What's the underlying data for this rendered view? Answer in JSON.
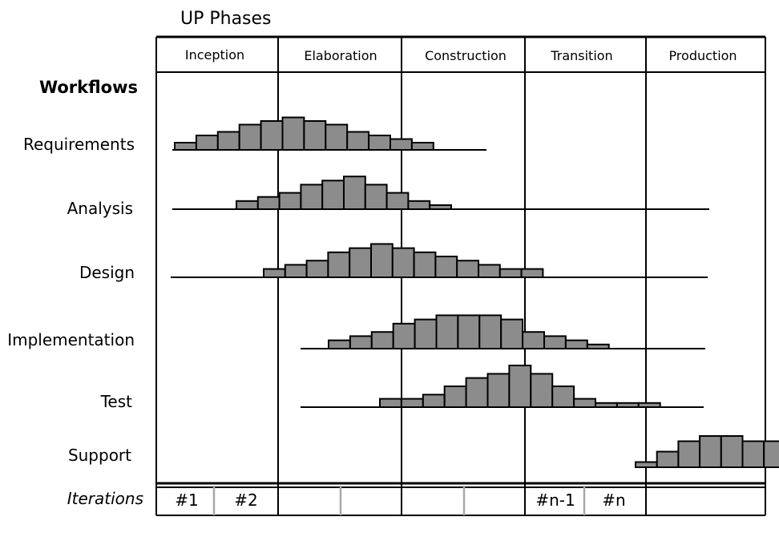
{
  "title": "UP Phases",
  "phases": [
    "Inception",
    "Elaboration",
    "Construction",
    "Transition",
    "Production"
  ],
  "workflows_header": "Workflows",
  "workflows": [
    {
      "label": "Requirements",
      "levels": [
        2,
        4,
        5,
        7,
        8,
        9,
        8,
        7,
        5,
        4,
        3,
        2
      ]
    },
    {
      "label": "Analysis",
      "levels": [
        2,
        3,
        4,
        6,
        7,
        8,
        6,
        4,
        2,
        1
      ]
    },
    {
      "label": "Design",
      "levels": [
        2,
        3,
        4,
        6,
        7,
        8,
        7,
        6,
        5,
        4,
        3,
        2,
        2
      ]
    },
    {
      "label": "Implementation",
      "levels": [
        2,
        3,
        4,
        6,
        7,
        8,
        8,
        8,
        7,
        4,
        3,
        2,
        1
      ]
    },
    {
      "label": "Test",
      "levels": [
        2,
        2,
        3,
        5,
        7,
        8,
        10,
        8,
        5,
        2,
        1,
        1,
        1
      ]
    },
    {
      "label": "Support",
      "levels": [
        1,
        3,
        5,
        6,
        6,
        5,
        5
      ]
    }
  ],
  "iterations_header": "Iterations",
  "iterations": [
    "#1",
    "#2",
    "",
    "",
    "",
    "",
    "#n-1",
    "#n",
    ""
  ],
  "colors": {
    "bar_fill": "#8c8c8c",
    "gray_divider": "#a8a8a8"
  }
}
